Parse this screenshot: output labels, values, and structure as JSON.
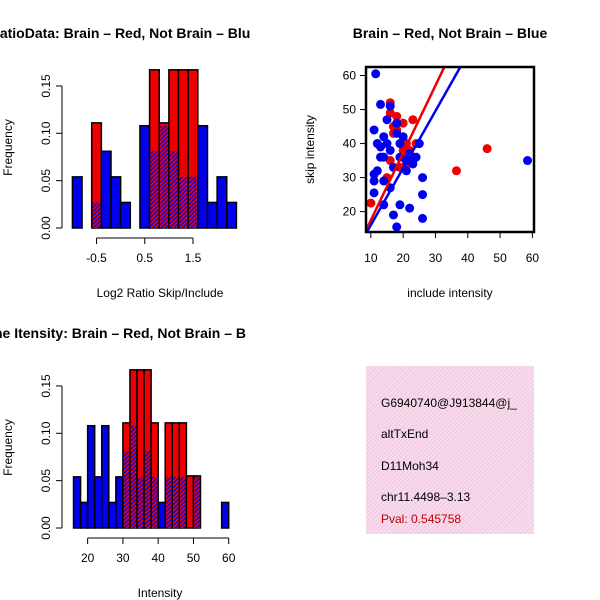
{
  "colors": {
    "red": "#ee0000",
    "blue": "#0000ee",
    "purple": "#a000a0",
    "info_bg": "#f4d0e6",
    "pval": "#c00000"
  },
  "chart_data": [
    {
      "type": "bar",
      "title": "RatioData: Brain – Red, Not Brain – Blu",
      "xlabel": "Log2 Ratio Skip/Include",
      "ylabel": "Frequency",
      "bin_width": 0.2,
      "bin_starts": [
        -1.0,
        -0.8,
        -0.6,
        -0.4,
        -0.2,
        0.0,
        0.2,
        0.4,
        0.6,
        0.8,
        1.0,
        1.2,
        1.4,
        1.6,
        1.8,
        2.0,
        2.2
      ],
      "xticks": [
        -0.5,
        0.5,
        1.5
      ],
      "xtick_labels": [
        "-0.5",
        "0.5",
        "1.5"
      ],
      "yticks": [
        0.0,
        0.05,
        0.1,
        0.15
      ],
      "ytick_labels": [
        "0.00",
        "0.05",
        "0.10",
        "0.15"
      ],
      "ylim": [
        0,
        0.17
      ],
      "series": [
        {
          "name": "Brain",
          "color": "red",
          "values": [
            0,
            0,
            0.111,
            0,
            0,
            0,
            0,
            0,
            0.167,
            0.111,
            0.167,
            0.167,
            0.167,
            0,
            0,
            0,
            0
          ]
        },
        {
          "name": "Not Brain",
          "color": "blue",
          "values": [
            0.054,
            0,
            0.027,
            0.081,
            0.054,
            0.027,
            0,
            0.108,
            0.081,
            0.108,
            0.081,
            0.054,
            0.054,
            0.108,
            0.027,
            0.054,
            0.027
          ]
        }
      ]
    },
    {
      "type": "scatter",
      "title": "Brain – Red, Not Brain – Blue",
      "xlabel": "include intensity",
      "ylabel": "skip intensity",
      "xlim": [
        8.5,
        60.5
      ],
      "ylim": [
        14,
        62.5
      ],
      "xticks": [
        10,
        20,
        30,
        40,
        50,
        60
      ],
      "xtick_labels": [
        "10",
        "20",
        "30",
        "40",
        "50",
        "60"
      ],
      "yticks": [
        20,
        30,
        40,
        50,
        60
      ],
      "ytick_labels": [
        "20",
        "30",
        "40",
        "50",
        "60"
      ],
      "series": [
        {
          "name": "Brain",
          "color": "red",
          "points": [
            [
              10,
              22.5
            ],
            [
              16,
              49
            ],
            [
              16,
              52
            ],
            [
              17,
              45
            ],
            [
              17,
              43
            ],
            [
              18,
              48
            ],
            [
              18,
              44
            ],
            [
              20,
              46
            ],
            [
              20,
              38
            ],
            [
              20,
              36
            ],
            [
              21,
              40
            ],
            [
              21,
              34
            ],
            [
              23,
              47
            ],
            [
              24,
              40
            ],
            [
              15,
              30
            ],
            [
              16,
              35
            ],
            [
              36.5,
              32
            ],
            [
              46,
              38.5
            ],
            [
              19,
              33
            ],
            [
              22,
              38
            ]
          ],
          "fit_line": [
            [
              8.5,
              14.5
            ],
            [
              33,
              63
            ]
          ]
        },
        {
          "name": "Not Brain",
          "color": "blue",
          "points": [
            [
              11.5,
              60.5
            ],
            [
              11,
              44
            ],
            [
              11,
              31
            ],
            [
              11,
              29
            ],
            [
              11,
              25.5
            ],
            [
              12,
              40
            ],
            [
              12,
              32
            ],
            [
              13,
              51.5
            ],
            [
              13,
              39
            ],
            [
              13,
              36
            ],
            [
              14,
              42
            ],
            [
              14,
              36
            ],
            [
              14,
              29
            ],
            [
              14,
              22
            ],
            [
              15,
              47
            ],
            [
              15,
              40
            ],
            [
              16,
              51
            ],
            [
              16,
              38
            ],
            [
              16,
              27
            ],
            [
              17,
              33
            ],
            [
              17,
              19
            ],
            [
              18,
              15.5
            ],
            [
              18,
              46
            ],
            [
              19,
              40
            ],
            [
              19,
              36
            ],
            [
              19,
              22
            ],
            [
              20,
              42
            ],
            [
              21,
              35
            ],
            [
              21,
              32
            ],
            [
              22,
              37
            ],
            [
              22,
              21
            ],
            [
              23,
              35
            ],
            [
              23,
              34
            ],
            [
              26,
              30
            ],
            [
              26,
              25
            ],
            [
              26,
              18
            ],
            [
              58.5,
              35
            ],
            [
              18,
              43
            ],
            [
              24,
              36
            ],
            [
              25,
              40
            ]
          ],
          "fit_line": [
            [
              8.5,
              13.5
            ],
            [
              38,
              63
            ]
          ]
        }
      ]
    },
    {
      "type": "bar",
      "title": "ne Itensity: Brain – Red, Not Brain – B",
      "xlabel": "Intensity",
      "ylabel": "Frequency",
      "bin_width": 2,
      "bin_starts": [
        16,
        18,
        20,
        22,
        24,
        26,
        28,
        30,
        32,
        34,
        36,
        38,
        40,
        42,
        44,
        46,
        48,
        50,
        52,
        54,
        56,
        58
      ],
      "xticks": [
        20,
        30,
        40,
        50,
        60
      ],
      "xtick_labels": [
        "20",
        "30",
        "40",
        "50",
        "60"
      ],
      "yticks": [
        0.0,
        0.05,
        0.1,
        0.15
      ],
      "ytick_labels": [
        "0.00",
        "0.05",
        "0.10",
        "0.15"
      ],
      "ylim": [
        0,
        0.17
      ],
      "series": [
        {
          "name": "Brain",
          "color": "red",
          "values": [
            0,
            0,
            0,
            0,
            0,
            0,
            0,
            0.111,
            0.167,
            0.167,
            0.167,
            0.111,
            0,
            0.111,
            0.111,
            0.111,
            0.055,
            0.055,
            0,
            0,
            0,
            0
          ]
        },
        {
          "name": "Not Brain",
          "color": "blue",
          "values": [
            0.054,
            0.027,
            0.108,
            0.054,
            0.108,
            0.027,
            0.054,
            0.081,
            0.108,
            0.054,
            0.081,
            0.054,
            0.027,
            0.054,
            0.054,
            0.054,
            0,
            0.054,
            0,
            0,
            0,
            0.027
          ]
        }
      ]
    }
  ],
  "info": {
    "event_id": "G6940740@J913844@j_",
    "event_type": "altTxEnd",
    "gene": "D11Moh34",
    "location": "chr11.4498–3.13",
    "pval": "Pval: 0.545758"
  }
}
